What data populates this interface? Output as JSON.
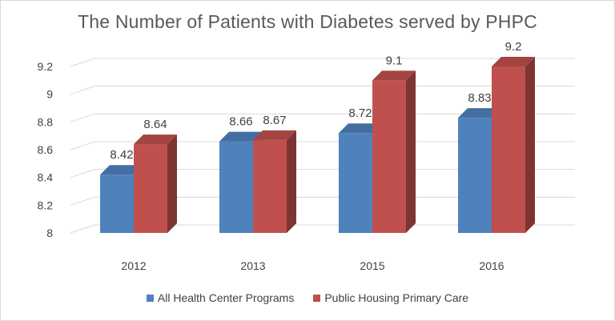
{
  "chart_data": {
    "type": "bar",
    "title": "The Number of Patients with Diabetes served by PHPC",
    "categories": [
      "2012",
      "2013",
      "2015",
      "2016"
    ],
    "series": [
      {
        "name": "All Health Center Programs",
        "values": [
          8.42,
          8.66,
          8.72,
          8.83
        ],
        "labels": [
          "8.42",
          "8.66",
          "8.72",
          "8.83"
        ],
        "color": "#4f81bd"
      },
      {
        "name": "Public Housing Primary Care",
        "values": [
          8.64,
          8.67,
          9.1,
          9.2
        ],
        "labels": [
          "8.64",
          "8.67",
          "9.1",
          "9.2"
        ],
        "color": "#c0504d"
      }
    ],
    "y_ticks": [
      "8",
      "8.2",
      "8.4",
      "8.6",
      "8.8",
      "9",
      "9.2"
    ],
    "ylim": [
      8,
      9.2
    ],
    "xlabel": "",
    "ylabel": "",
    "grid": true,
    "style_3d": true,
    "legend_position": "bottom"
  }
}
